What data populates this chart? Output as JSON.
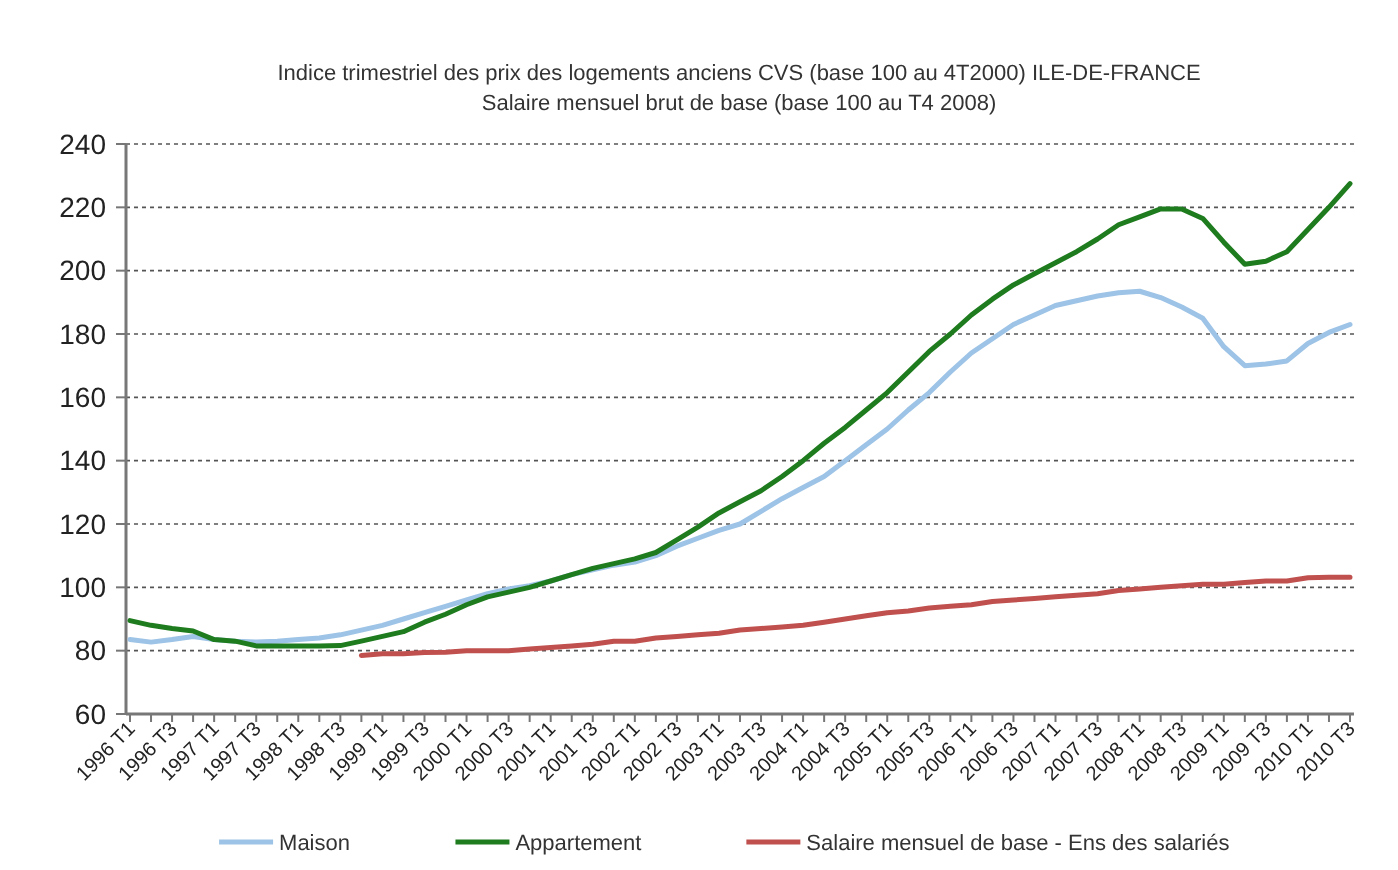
{
  "chart_data": {
    "type": "line",
    "title": "Indice trimestriel des prix des logements anciens CVS (base 100 au 4T2000) ILE-DE-FRANCE",
    "subtitle": "Salaire mensuel brut de base (base 100 au T4 2008)",
    "categories": [
      "1996 T1",
      null,
      "1996 T3",
      null,
      "1997 T1",
      null,
      "1997 T3",
      null,
      "1998 T1",
      null,
      "1998 T3",
      null,
      "1999 T1",
      null,
      "1999 T3",
      null,
      "2000 T1",
      null,
      "2000 T3",
      null,
      "2001 T1",
      null,
      "2001 T3",
      null,
      "2002 T1",
      null,
      "2002 T3",
      null,
      "2003 T1",
      null,
      "2003 T3",
      null,
      "2004 T1",
      null,
      "2004 T3",
      null,
      "2005 T1",
      null,
      "2005 T3",
      null,
      "2006 T1",
      null,
      "2006 T3",
      null,
      "2007 T1",
      null,
      "2007 T3",
      null,
      "2008 T1",
      null,
      "2008 T3",
      null,
      "2009 T1",
      null,
      "2009 T3",
      null,
      "2010 T1",
      null,
      "2010 T3"
    ],
    "series": [
      {
        "name": "Maison",
        "color": "#9dc3e6",
        "values": [
          83.5,
          82.7,
          83.5,
          84.5,
          83.5,
          83,
          82.7,
          83,
          83.5,
          84,
          85,
          86.5,
          88,
          90,
          92,
          94,
          96,
          98,
          99.5,
          100.5,
          102,
          104,
          105.5,
          107,
          108,
          110,
          113,
          115.5,
          118,
          120,
          124,
          128,
          131.5,
          135,
          140,
          145,
          150,
          156,
          161.5,
          168,
          174,
          178.5,
          183,
          186,
          189,
          190.5,
          192,
          193,
          193.5,
          191.5,
          188.5,
          185,
          176,
          170,
          170.5,
          171.5,
          177,
          180.5,
          183
        ]
      },
      {
        "name": "Appartement",
        "color": "#1e7b1e",
        "values": [
          89.5,
          88,
          87,
          86.2,
          83.5,
          83,
          81.5,
          81.5,
          81.5,
          81.5,
          81.6,
          83,
          84.5,
          86,
          89,
          91.5,
          94.5,
          97,
          98.5,
          100,
          102,
          104,
          106,
          107.5,
          109,
          111,
          115,
          119,
          123.5,
          127,
          130.5,
          135,
          140,
          145.5,
          150.5,
          156,
          161.5,
          168,
          174.5,
          180,
          186,
          191,
          195.5,
          199,
          202.5,
          206,
          210,
          214.5,
          217,
          219.5,
          219.5,
          216.5,
          209,
          202,
          203,
          206,
          213,
          220,
          227.5
        ]
      },
      {
        "name": "Salaire mensuel de base - Ens des salariés",
        "color": "#c0504d",
        "values": [
          null,
          null,
          null,
          null,
          null,
          null,
          null,
          null,
          null,
          null,
          null,
          78.5,
          79,
          79,
          79.4,
          79.5,
          80,
          80,
          80,
          80.5,
          81,
          81.5,
          82,
          83,
          83,
          84,
          84.5,
          85,
          85.5,
          86.5,
          87,
          87.5,
          88,
          89,
          90,
          91,
          92,
          92.5,
          93.5,
          94,
          94.5,
          95.5,
          96,
          96.5,
          97,
          97.5,
          98,
          99,
          99.5,
          100,
          100.5,
          101,
          101,
          101.5,
          102,
          102,
          103,
          103.2,
          103.2
        ]
      }
    ],
    "ylim": [
      60,
      240
    ],
    "yticks": [
      60,
      80,
      100,
      120,
      140,
      160,
      180,
      200,
      220,
      240
    ],
    "grid": "y",
    "legend": "bottom",
    "marker": "none",
    "line_style": "solid"
  }
}
